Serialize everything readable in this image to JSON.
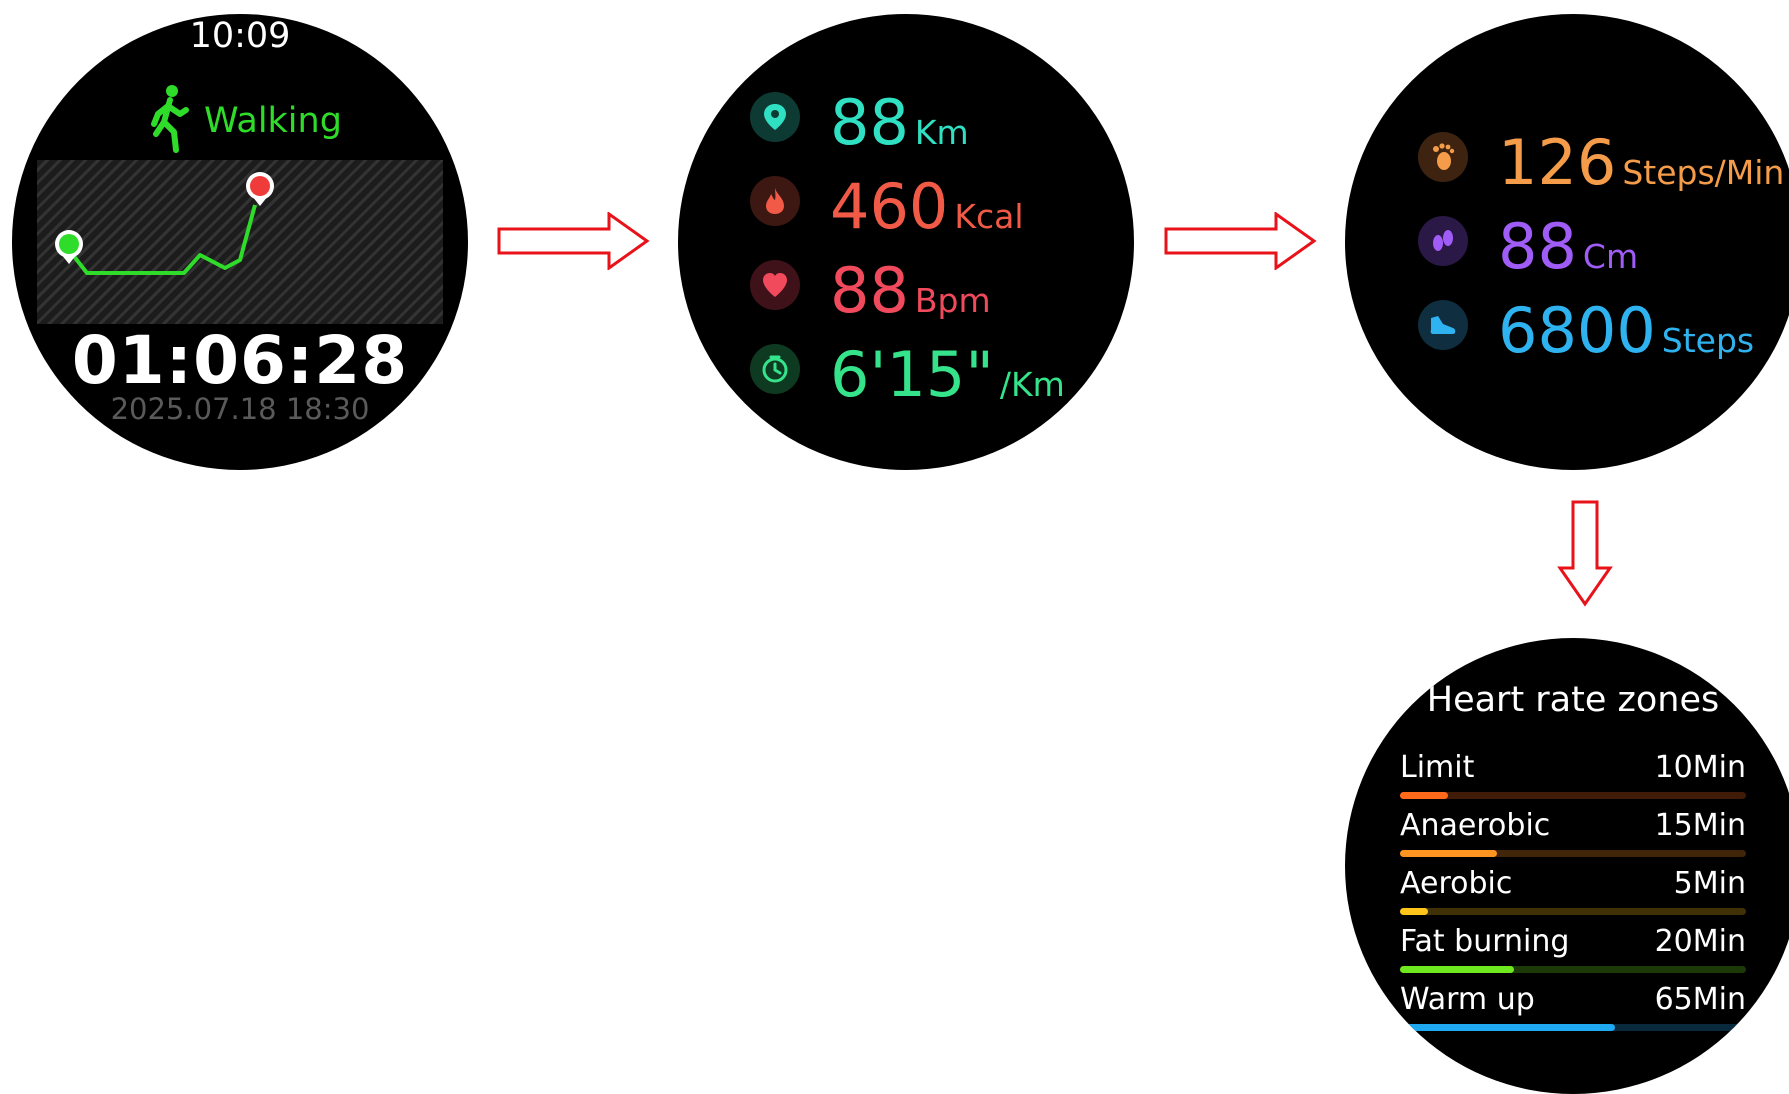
{
  "screen1": {
    "time": "10:09",
    "sport_label": "Walking",
    "duration": "01:06:28",
    "datetime": "2025.07.18 18:30"
  },
  "screen2": {
    "metrics": [
      {
        "icon": "location-pin-icon",
        "value": "88",
        "unit": "Km",
        "color": "#2fe0c3"
      },
      {
        "icon": "flame-icon",
        "value": "460",
        "unit": "Kcal",
        "color": "#f05a46"
      },
      {
        "icon": "heart-icon",
        "value": "88",
        "unit": "Bpm",
        "color": "#f04a5c"
      },
      {
        "icon": "timer-icon",
        "value": "6'15\"",
        "unit": "/Km",
        "color": "#34e38a"
      }
    ]
  },
  "screen3": {
    "metrics": [
      {
        "icon": "footprint-icon",
        "value": "126",
        "unit": "Steps/Min",
        "color": "#f59c4a"
      },
      {
        "icon": "stride-icon",
        "value": "88",
        "unit": "Cm",
        "color": "#a05cf6"
      },
      {
        "icon": "shoe-icon",
        "value": "6800",
        "unit": "Steps",
        "color": "#2eb3f0"
      }
    ]
  },
  "screen4": {
    "title": "Heart rate zones",
    "zones": [
      {
        "name": "Limit",
        "value": "10Min",
        "fraction": 0.14,
        "color": "#ff6a1a"
      },
      {
        "name": "Anaerobic",
        "value": "15Min",
        "fraction": 0.28,
        "color": "#ff9520"
      },
      {
        "name": "Aerobic",
        "value": "5Min",
        "fraction": 0.08,
        "color": "#ffc51a"
      },
      {
        "name": "Fat burning",
        "value": "20Min",
        "fraction": 0.33,
        "color": "#6fe81f"
      },
      {
        "name": "Warm up",
        "value": "65Min",
        "fraction": 0.62,
        "color": "#1fa9f0"
      }
    ]
  }
}
